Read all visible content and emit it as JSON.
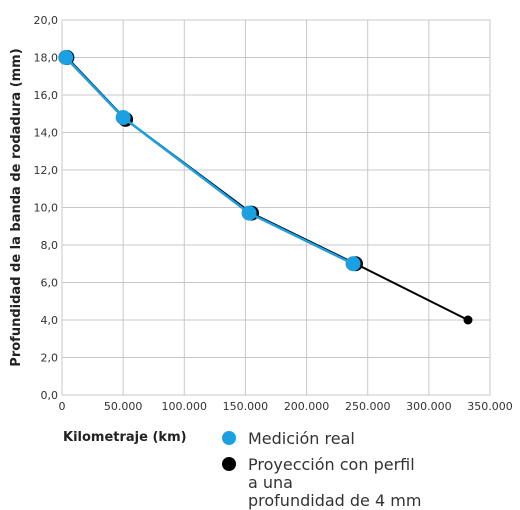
{
  "chart_data": {
    "type": "line",
    "xlabel": "Kilometraje (km)",
    "ylabel": "Profundidad de la banda de rodadura (mm)",
    "xlim": [
      0,
      350000
    ],
    "ylim": [
      0,
      20
    ],
    "x_ticks": [
      0,
      50000,
      100000,
      150000,
      200000,
      250000,
      300000,
      350000
    ],
    "x_tick_labels": [
      "0",
      "50.000",
      "100.000",
      "150.000",
      "200.000",
      "250.000",
      "300.000",
      "350.000"
    ],
    "y_ticks": [
      0,
      2,
      4,
      6,
      8,
      10,
      12,
      14,
      16,
      18,
      20
    ],
    "y_tick_labels": [
      "0,0",
      "2,0",
      "4,0",
      "6,0",
      "8,0",
      "10,0",
      "12,0",
      "14,0",
      "16,0",
      "18,0",
      "20,0"
    ],
    "grid": true,
    "legend_position": "bottom",
    "series": [
      {
        "name": "Medición real",
        "color": "#1ba1e2",
        "x": [
          3000,
          50000,
          153000,
          238000
        ],
        "y": [
          18.0,
          14.8,
          9.7,
          7.0
        ]
      },
      {
        "name": "Proyección con perfil a una profundidad de 4 mm",
        "color": "#000000",
        "x": [
          4000,
          52000,
          155000,
          240000,
          332000
        ],
        "y": [
          18.0,
          14.7,
          9.7,
          7.0,
          4.0
        ]
      }
    ]
  },
  "legend": {
    "xlabel": "Kilometraje  (km)",
    "items": [
      {
        "label_line1": "Medición real",
        "label_line2": "",
        "color": "#1ba1e2"
      },
      {
        "label_line1": "Proyección con perfil a una",
        "label_line2": "profundidad de 4 mm",
        "color": "#000000"
      }
    ]
  }
}
